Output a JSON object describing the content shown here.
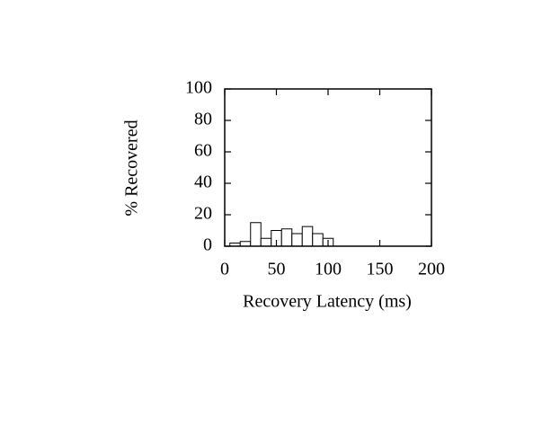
{
  "chart_data": {
    "type": "histogram",
    "xlabel": "Recovery Latency (ms)",
    "ylabel": "% Recovered",
    "bins": [
      5,
      15,
      25,
      35,
      45,
      55,
      65,
      75,
      85,
      95,
      105
    ],
    "values": [
      2,
      3,
      15,
      5,
      10,
      11,
      8,
      12.5,
      8,
      5
    ],
    "color": "#ffffff",
    "edgecolor": "#000000",
    "xlim": [
      0,
      200
    ],
    "xticks": [
      0,
      50,
      100,
      150,
      200
    ],
    "ylim": [
      0,
      100
    ],
    "yticks": [
      0,
      20,
      40,
      60,
      80,
      100
    ],
    "grid": false
  }
}
